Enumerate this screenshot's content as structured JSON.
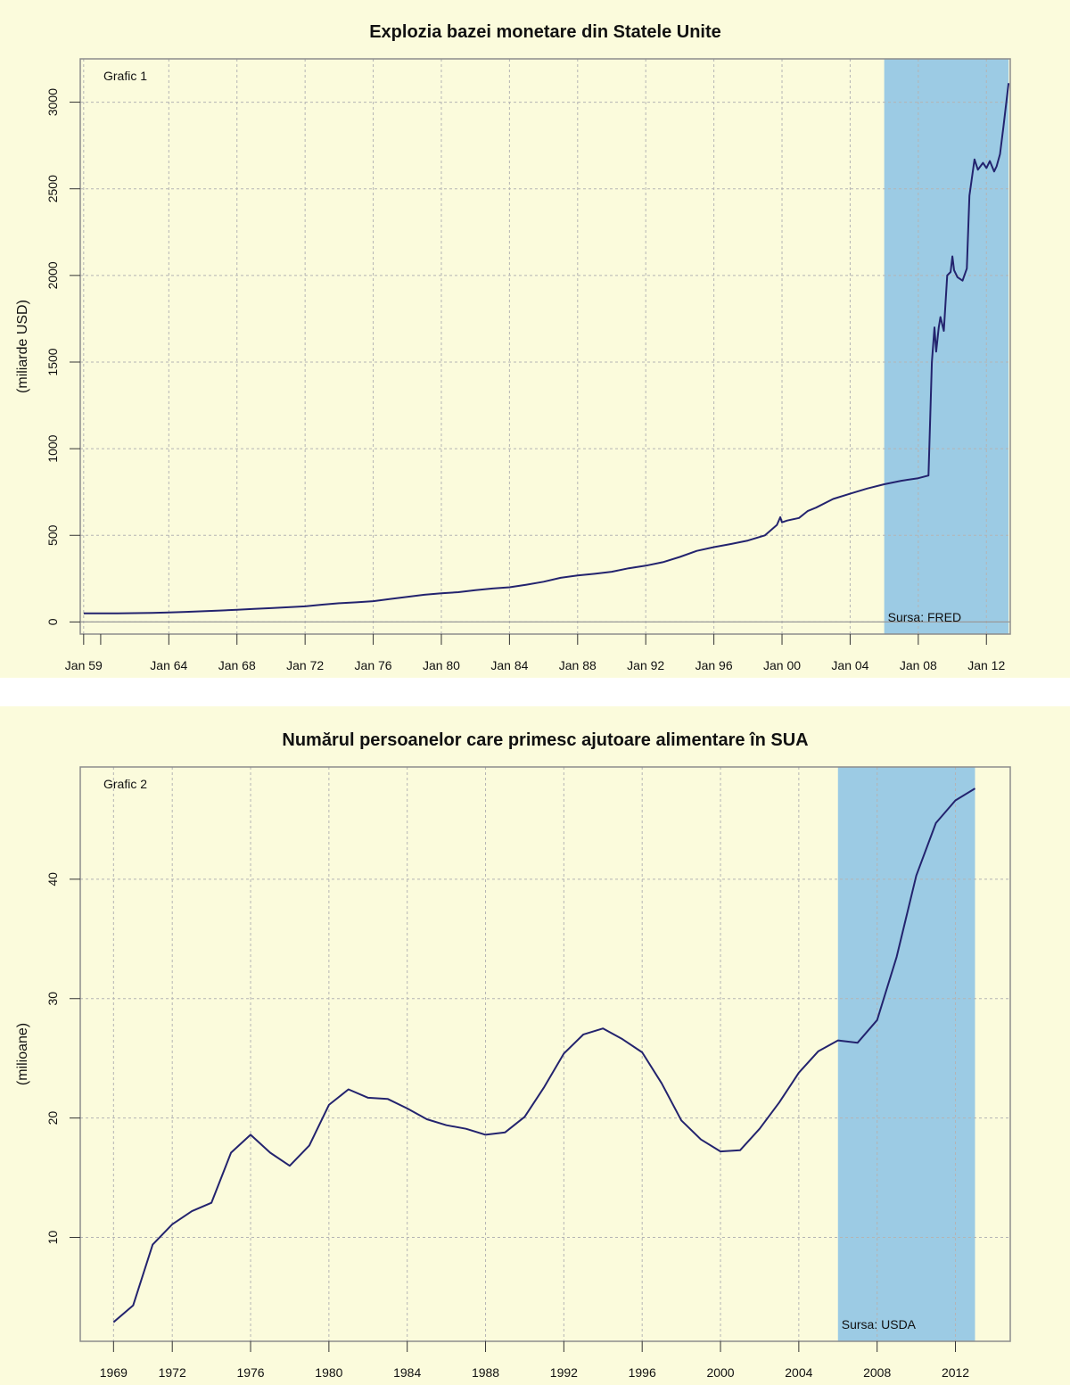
{
  "chart_data": [
    {
      "type": "line",
      "title": "Explozia bazei monetare din Statele Unite",
      "panel_label": "Grafic 1",
      "ylabel": "(miliarde USD)",
      "xlabel": "",
      "source": "Sursa: FRED",
      "xlim": [
        1958.8,
        2013.4
      ],
      "ylim": [
        -70,
        3250
      ],
      "x_tick_labels": [
        "Jan 59",
        "Jan 64",
        "Jan 68",
        "Jan 72",
        "Jan 76",
        "Jan 80",
        "Jan 84",
        "Jan 88",
        "Jan 92",
        "Jan 96",
        "Jan 00",
        "Jan 04",
        "Jan 08",
        "Jan 12"
      ],
      "x_tick_values": [
        1959,
        1964,
        1968,
        1972,
        1976,
        1980,
        1984,
        1988,
        1992,
        1996,
        2000,
        2004,
        2008,
        2012
      ],
      "x_minor_ticks": [
        1960
      ],
      "y_ticks": [
        0,
        500,
        1000,
        1500,
        2000,
        2500,
        3000
      ],
      "grid": true,
      "shaded_region": {
        "from": 2006.0,
        "to": 2013.3,
        "color": "#9ccbe4"
      },
      "line_color": "#23236e",
      "series": [
        {
          "x": [
            1959,
            1960,
            1961,
            1962,
            1963,
            1964,
            1965,
            1966,
            1967,
            1968,
            1969,
            1970,
            1971,
            1972,
            1973,
            1974,
            1975,
            1976,
            1977,
            1978,
            1979,
            1980,
            1981,
            1982,
            1983,
            1984,
            1985,
            1986,
            1987,
            1988,
            1989,
            1990,
            1991,
            1992,
            1993,
            1994,
            1995,
            1996,
            1997,
            1998,
            1999,
            1999.7,
            1999.9,
            2000,
            2000.3,
            2001,
            2001.5,
            2002,
            2003,
            2004,
            2005,
            2006,
            2007,
            2008,
            2008.6,
            2008.8,
            2008.95,
            2009.05,
            2009.2,
            2009.3,
            2009.5,
            2009.7,
            2009.9,
            2010,
            2010.1,
            2010.3,
            2010.6,
            2010.85,
            2011,
            2011.3,
            2011.5,
            2011.8,
            2012,
            2012.2,
            2012.45,
            2012.6,
            2012.8,
            2013,
            2013.3
          ],
          "y": [
            50,
            50,
            50,
            51,
            52,
            55,
            58,
            62,
            66,
            70,
            75,
            80,
            85,
            90,
            100,
            108,
            113,
            120,
            133,
            145,
            157,
            165,
            172,
            183,
            193,
            200,
            215,
            232,
            255,
            268,
            278,
            290,
            310,
            325,
            345,
            375,
            410,
            432,
            450,
            470,
            500,
            560,
            605,
            575,
            585,
            600,
            640,
            660,
            710,
            740,
            770,
            795,
            815,
            830,
            845,
            1500,
            1700,
            1560,
            1700,
            1760,
            1680,
            2000,
            2020,
            2110,
            2030,
            1990,
            1970,
            2040,
            2460,
            2670,
            2610,
            2650,
            2620,
            2660,
            2600,
            2630,
            2700,
            2860,
            3110
          ]
        }
      ]
    },
    {
      "type": "line",
      "title": "Numărul persoanelor care primesc ajutoare alimentare în SUA",
      "panel_label": "Grafic 2",
      "ylabel": "(milioane)",
      "xlabel": "",
      "source": "Sursa: USDA",
      "xlim": [
        1967.3,
        2014.8
      ],
      "ylim": [
        1.3,
        49.4
      ],
      "x_ticks": [
        1969,
        1972,
        1976,
        1980,
        1984,
        1988,
        1992,
        1996,
        2000,
        2004,
        2008,
        2012
      ],
      "y_ticks": [
        10,
        20,
        30,
        40
      ],
      "grid": true,
      "shaded_region": {
        "from": 2006.0,
        "to": 2013.0,
        "color": "#9ccbe4"
      },
      "line_color": "#23236e",
      "series": [
        {
          "x": [
            1969,
            1970,
            1971,
            1972,
            1973,
            1974,
            1975,
            1976,
            1977,
            1978,
            1979,
            1980,
            1981,
            1982,
            1983,
            1984,
            1985,
            1986,
            1987,
            1988,
            1989,
            1990,
            1991,
            1992,
            1993,
            1994,
            1995,
            1996,
            1997,
            1998,
            1999,
            2000,
            2001,
            2002,
            2003,
            2004,
            2005,
            2006,
            2007,
            2008,
            2009,
            2010,
            2011,
            2012,
            2013
          ],
          "y": [
            2.9,
            4.3,
            9.4,
            11.1,
            12.2,
            12.9,
            17.1,
            18.6,
            17.1,
            16.0,
            17.7,
            21.1,
            22.4,
            21.7,
            21.6,
            20.8,
            19.9,
            19.4,
            19.1,
            18.6,
            18.8,
            20.1,
            22.6,
            25.4,
            27.0,
            27.5,
            26.6,
            25.5,
            22.9,
            19.8,
            18.2,
            17.2,
            17.3,
            19.1,
            21.3,
            23.8,
            25.6,
            26.5,
            26.3,
            28.2,
            33.5,
            40.3,
            44.7,
            46.6,
            47.6
          ]
        }
      ]
    }
  ]
}
